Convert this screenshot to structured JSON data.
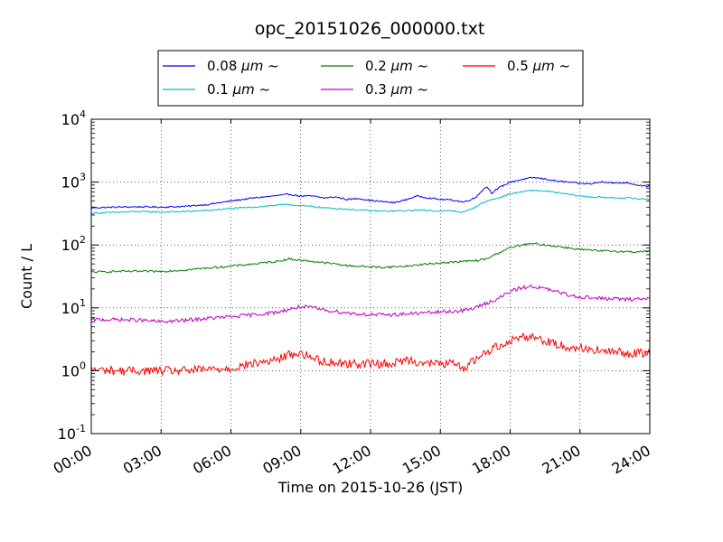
{
  "chart_data": {
    "type": "line",
    "title": "opc_20151026_000000.txt",
    "xlabel": "Time on 2015-10-26 (JST)",
    "ylabel": "Count / L",
    "x_unit": "hours",
    "xlim": [
      0,
      24
    ],
    "ylim": [
      0.1,
      10000
    ],
    "yscale": "log",
    "grid": true,
    "legend_position": "top-center",
    "x_tick_labels": [
      "00:00",
      "03:00",
      "06:00",
      "09:00",
      "12:00",
      "15:00",
      "18:00",
      "21:00",
      "24:00"
    ],
    "y_ticks": [
      {
        "base": "10",
        "exp": "-1"
      },
      {
        "base": "10",
        "exp": "0"
      },
      {
        "base": "10",
        "exp": "1"
      },
      {
        "base": "10",
        "exp": "2"
      },
      {
        "base": "10",
        "exp": "3"
      },
      {
        "base": "10",
        "exp": "4"
      }
    ],
    "series": [
      {
        "name": "0.08 μm ~",
        "label_prefix": "0.08 ",
        "label_unit": "μm",
        "label_suffix": "~",
        "color": "#0000ff",
        "x": [
          0,
          1,
          2,
          3,
          4,
          5,
          6,
          7,
          8,
          8.5,
          9,
          9.5,
          10,
          10.5,
          11,
          11.5,
          12,
          12.5,
          13,
          13.5,
          14,
          14.5,
          15,
          15.5,
          16,
          16.5,
          17,
          17.2,
          17.5,
          18,
          18.5,
          19,
          19.5,
          20,
          20.5,
          21,
          21.5,
          22,
          22.5,
          23,
          23.5,
          24
        ],
        "y": [
          390,
          400,
          405,
          400,
          410,
          440,
          500,
          560,
          610,
          640,
          600,
          600,
          560,
          580,
          530,
          550,
          510,
          490,
          470,
          520,
          600,
          560,
          530,
          520,
          480,
          560,
          850,
          670,
          800,
          1000,
          1100,
          1180,
          1120,
          1040,
          1000,
          950,
          940,
          1020,
          960,
          980,
          900,
          850
        ]
      },
      {
        "name": "0.1 μm ~",
        "label_prefix": "0.1 ",
        "label_unit": "μm",
        "label_suffix": "~",
        "color": "#00bfbf",
        "x": [
          0,
          1,
          2,
          3,
          4,
          5,
          6,
          7,
          8,
          8.5,
          9,
          9.5,
          10,
          10.5,
          11,
          11.5,
          12,
          12.5,
          13,
          13.5,
          14,
          14.5,
          15,
          15.5,
          16,
          16.5,
          17,
          17.5,
          18,
          18.5,
          19,
          19.5,
          20,
          20.5,
          21,
          21.5,
          22,
          22.5,
          23,
          23.5,
          24
        ],
        "y": [
          320,
          330,
          340,
          335,
          340,
          355,
          380,
          400,
          430,
          440,
          420,
          410,
          390,
          380,
          370,
          360,
          350,
          345,
          345,
          350,
          360,
          355,
          345,
          350,
          330,
          400,
          500,
          560,
          650,
          700,
          740,
          720,
          680,
          640,
          600,
          580,
          570,
          560,
          565,
          540,
          540
        ]
      },
      {
        "name": "0.2 μm ~",
        "label_prefix": "0.2 ",
        "label_unit": "μm",
        "label_suffix": "~",
        "color": "#008000",
        "x": [
          0,
          1,
          2,
          3,
          4,
          5,
          6,
          7,
          8,
          8.5,
          9,
          9.5,
          10,
          10.5,
          11,
          11.5,
          12,
          12.5,
          13,
          13.5,
          14,
          14.5,
          15,
          15.5,
          16,
          16.5,
          17,
          17.5,
          18,
          18.5,
          19,
          19.5,
          20,
          20.5,
          21,
          21.5,
          22,
          22.5,
          23,
          23.5,
          24
        ],
        "y": [
          37,
          38,
          38,
          38,
          40,
          43,
          46,
          50,
          55,
          60,
          57,
          55,
          52,
          50,
          47,
          46,
          45,
          44,
          45,
          46,
          48,
          50,
          52,
          53,
          55,
          56,
          60,
          75,
          90,
          100,
          105,
          100,
          95,
          90,
          85,
          82,
          80,
          80,
          78,
          78,
          80
        ]
      },
      {
        "name": "0.3 μm ~",
        "label_prefix": "0.3 ",
        "label_unit": "μm",
        "label_suffix": "~",
        "color": "#bf00bf",
        "x": [
          0,
          1,
          2,
          3,
          4,
          5,
          6,
          7,
          8,
          8.5,
          9,
          9.5,
          10,
          10.5,
          11,
          11.5,
          12,
          12.5,
          13,
          13.5,
          14,
          14.5,
          15,
          15.5,
          16,
          16.5,
          17,
          17.5,
          18,
          18.5,
          19,
          19.5,
          20,
          20.5,
          21,
          21.5,
          22,
          22.5,
          23,
          23.5,
          24
        ],
        "y": [
          6.5,
          6.5,
          6.4,
          6,
          6.3,
          6.8,
          7.2,
          7.8,
          8.5,
          9.5,
          10.5,
          10,
          9.3,
          8.8,
          8.3,
          8,
          7.8,
          7.7,
          7.8,
          8,
          8.2,
          8.4,
          8.6,
          8.8,
          9,
          10,
          12,
          14,
          18,
          21,
          22,
          20,
          18,
          16,
          15,
          14.5,
          14,
          14,
          13.5,
          14,
          14
        ]
      },
      {
        "name": "0.5 μm ~",
        "label_prefix": "0.5 ",
        "label_unit": "μm",
        "label_suffix": "~",
        "color": "#ff0000",
        "x": [
          0,
          1,
          2,
          3,
          4,
          5,
          6,
          7,
          8,
          8.5,
          9,
          9.5,
          10,
          10.5,
          11,
          11.5,
          12,
          12.5,
          13,
          13.5,
          14,
          14.5,
          15,
          15.5,
          16,
          16.5,
          17,
          17.5,
          18,
          18.5,
          19,
          19.5,
          20,
          20.5,
          21,
          21.5,
          22,
          22.5,
          23,
          23.5,
          24
        ],
        "y": [
          1.05,
          1.0,
          1.0,
          1.0,
          1.0,
          1.05,
          1.1,
          1.3,
          1.5,
          1.8,
          1.9,
          1.6,
          1.4,
          1.35,
          1.3,
          1.3,
          1.3,
          1.3,
          1.3,
          1.5,
          1.4,
          1.3,
          1.3,
          1.3,
          1.1,
          1.5,
          2.0,
          2.5,
          3.0,
          3.5,
          3.5,
          3.0,
          2.6,
          2.4,
          2.3,
          2.2,
          2.0,
          2.0,
          1.9,
          1.9,
          1.9
        ]
      }
    ]
  }
}
